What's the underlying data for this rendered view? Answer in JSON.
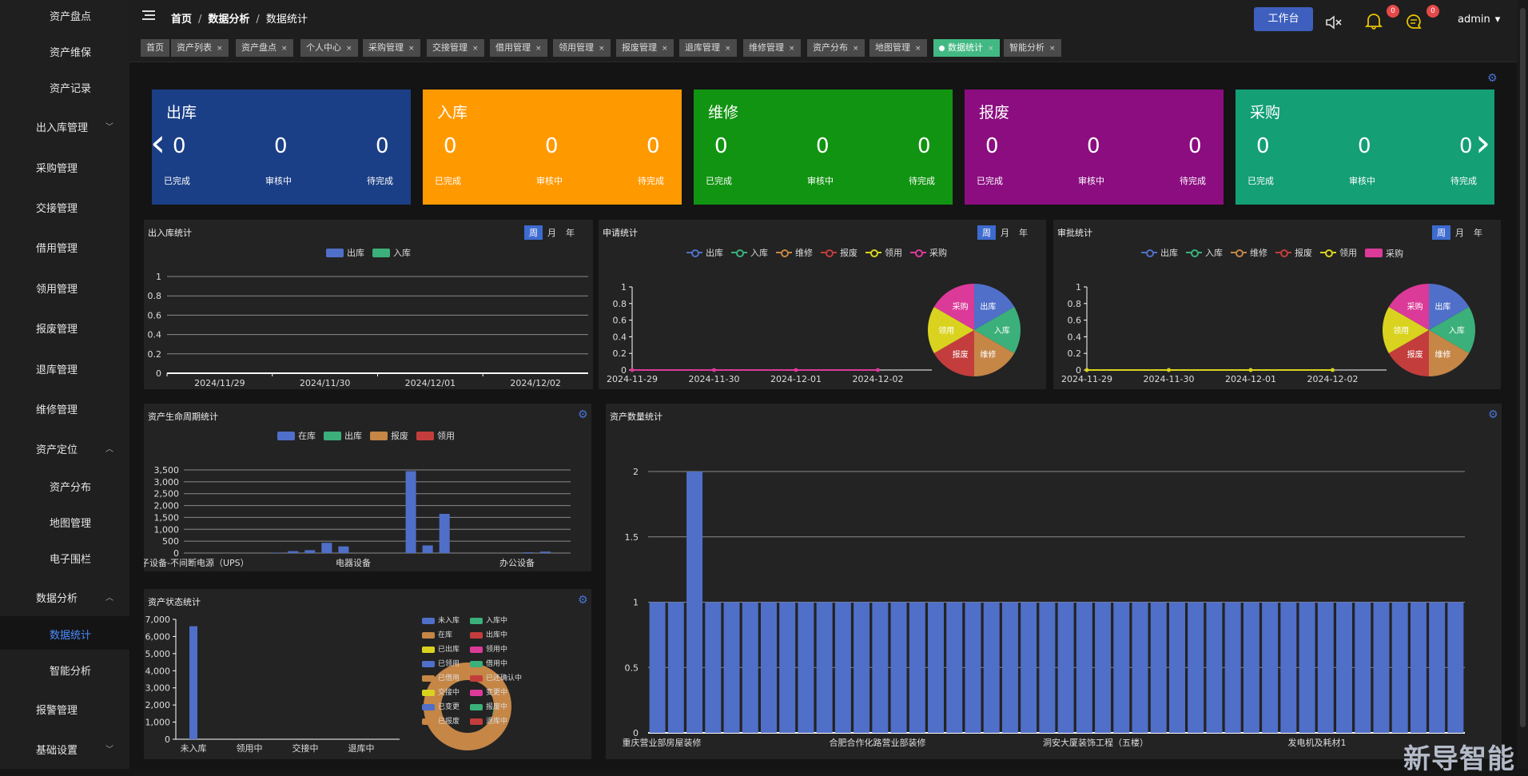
{
  "sidebar": {
    "items": [
      {
        "label": "资产盘点",
        "indent": true
      },
      {
        "label": "资产维保",
        "indent": true
      },
      {
        "label": "资产记录",
        "indent": true
      },
      {
        "label": "出入库管理",
        "indent": false,
        "arrow": "down"
      },
      {
        "label": "采购管理",
        "indent": false
      },
      {
        "label": "交接管理",
        "indent": false
      },
      {
        "label": "借用管理",
        "indent": false
      },
      {
        "label": "领用管理",
        "indent": false
      },
      {
        "label": "报废管理",
        "indent": false
      },
      {
        "label": "退库管理",
        "indent": false
      },
      {
        "label": "维修管理",
        "indent": false
      },
      {
        "label": "资产定位",
        "indent": false,
        "arrow": "up"
      },
      {
        "label": "资产分布",
        "indent": true
      },
      {
        "label": "地图管理",
        "indent": true
      },
      {
        "label": "电子围栏",
        "indent": true
      },
      {
        "label": "数据分析",
        "indent": false,
        "arrow": "up"
      },
      {
        "label": "数据统计",
        "indent": true,
        "active": true
      },
      {
        "label": "智能分析",
        "indent": true
      },
      {
        "label": "报警管理",
        "indent": false
      },
      {
        "label": "基础设置",
        "indent": false,
        "arrow": "down"
      }
    ]
  },
  "header": {
    "menu_icon": "hamburger-icon",
    "breadcrumb": [
      "首页",
      "数据分析",
      "数据统计"
    ],
    "sep": "/",
    "workbench": "工作台",
    "mute_icon": "speaker-mute-icon",
    "bell_icon": "bell-icon",
    "bell_badge": "0",
    "chat_icon": "chat-icon",
    "chat_badge": "0",
    "user": "admin",
    "caret": "▾"
  },
  "tags": [
    {
      "label": "首页",
      "closable": false
    },
    {
      "label": "资产列表",
      "closable": true
    },
    {
      "label": "资产盘点",
      "closable": true
    },
    {
      "label": "个人中心",
      "closable": true
    },
    {
      "label": "采购管理",
      "closable": true
    },
    {
      "label": "交接管理",
      "closable": true
    },
    {
      "label": "借用管理",
      "closable": true
    },
    {
      "label": "领用管理",
      "closable": true
    },
    {
      "label": "报废管理",
      "closable": true
    },
    {
      "label": "退库管理",
      "closable": true
    },
    {
      "label": "维修管理",
      "closable": true
    },
    {
      "label": "资产分布",
      "closable": true
    },
    {
      "label": "地图管理",
      "closable": true
    },
    {
      "label": "数据统计",
      "closable": true,
      "active": true
    },
    {
      "label": "智能分析",
      "closable": true
    }
  ],
  "colors": {
    "blue": "#4f6fc8",
    "green": "#3bb07a",
    "orange": "#c58646",
    "red": "#c43d3d",
    "yellow": "#d9d31f",
    "pink": "#db3a99",
    "cardBlue": "#1b3f86",
    "cardOrange": "#ff9900",
    "cardGreen": "#119411",
    "cardPurple": "#8b0d80",
    "cardTeal": "#149f75"
  },
  "cards": [
    {
      "title": "出库",
      "color": "#1b3f86",
      "values": [
        "0",
        "0",
        "0"
      ],
      "labels": [
        "已完成",
        "审核中",
        "待完成"
      ]
    },
    {
      "title": "入库",
      "color": "#ff9900",
      "values": [
        "0",
        "0",
        "0"
      ],
      "labels": [
        "已完成",
        "审核中",
        "待完成"
      ]
    },
    {
      "title": "维修",
      "color": "#119411",
      "values": [
        "0",
        "0",
        "0"
      ],
      "labels": [
        "已完成",
        "审核中",
        "待完成"
      ]
    },
    {
      "title": "报废",
      "color": "#8b0d80",
      "values": [
        "0",
        "0",
        "0"
      ],
      "labels": [
        "已完成",
        "审核中",
        "待完成"
      ]
    },
    {
      "title": "采购",
      "color": "#149f75",
      "values": [
        "0",
        "0",
        "0"
      ],
      "labels": [
        "已完成",
        "审核中",
        "待完成"
      ]
    }
  ],
  "carousel": {
    "prev": "‹",
    "next": "›"
  },
  "period_buttons": [
    "周",
    "月",
    "年"
  ],
  "gear_icon": "gear-icon",
  "chart_data": [
    {
      "id": "inout",
      "type": "bar",
      "title": "出入库统计",
      "categories": [
        "2024/11/29",
        "2024/11/30",
        "2024/12/01",
        "2024/12/02"
      ],
      "series": [
        {
          "name": "出库",
          "values": [
            0,
            0,
            0,
            0
          ]
        },
        {
          "name": "入库",
          "values": [
            0,
            0,
            0,
            0
          ]
        }
      ],
      "ylim": [
        0,
        1
      ],
      "yticks": [
        "0",
        "0.2",
        "0.4",
        "0.6",
        "0.8",
        "1"
      ],
      "grid": true,
      "legend": "top-center"
    },
    {
      "id": "apply",
      "type": "line",
      "title": "申请统计",
      "categories": [
        "2024-11-29",
        "2024-11-30",
        "2024-12-01",
        "2024-12-02"
      ],
      "series": [
        {
          "name": "出库",
          "values": [
            0,
            0,
            0,
            0
          ]
        },
        {
          "name": "入库",
          "values": [
            0,
            0,
            0,
            0
          ]
        },
        {
          "name": "维修",
          "values": [
            0,
            0,
            0,
            0
          ]
        },
        {
          "name": "报废",
          "values": [
            0,
            0,
            0,
            0
          ]
        },
        {
          "name": "领用",
          "values": [
            0,
            0,
            0,
            0
          ]
        },
        {
          "name": "采购",
          "values": [
            0,
            0,
            0,
            0
          ]
        }
      ],
      "ylim": [
        0,
        1
      ],
      "yticks": [
        "0",
        "0.2",
        "0.4",
        "0.6",
        "0.8",
        "1"
      ],
      "pie": {
        "type": "pie",
        "slices": [
          "出库",
          "入库",
          "维修",
          "报废",
          "领用",
          "采购"
        ],
        "values": [
          1,
          1,
          1,
          1,
          1,
          1
        ]
      },
      "legend": "top-center"
    },
    {
      "id": "approve",
      "type": "line",
      "title": "审批统计",
      "categories": [
        "2024-11-29",
        "2024-11-30",
        "2024-12-01",
        "2024-12-02"
      ],
      "series": [
        {
          "name": "出库",
          "values": [
            0,
            0,
            0,
            0
          ]
        },
        {
          "name": "入库",
          "values": [
            0,
            0,
            0,
            0
          ]
        },
        {
          "name": "维修",
          "values": [
            0,
            0,
            0,
            0
          ]
        },
        {
          "name": "报废",
          "values": [
            0,
            0,
            0,
            0
          ]
        },
        {
          "name": "领用",
          "values": [
            0,
            0,
            0,
            0
          ]
        },
        {
          "name": "采购",
          "values": [
            0,
            0,
            0,
            0
          ]
        }
      ],
      "ylim": [
        0,
        1
      ],
      "yticks": [
        "0",
        "0.2",
        "0.4",
        "0.6",
        "0.8",
        "1"
      ],
      "pie": {
        "type": "pie",
        "slices": [
          "出库",
          "入库",
          "维修",
          "报废",
          "领用",
          "采购"
        ],
        "values": [
          1,
          1,
          1,
          1,
          1,
          1
        ]
      },
      "legend": "top-center"
    },
    {
      "id": "lifecycle",
      "type": "bar",
      "title": "资产生命周期统计",
      "series": [
        {
          "name": "在库"
        },
        {
          "name": "出库"
        },
        {
          "name": "报废"
        },
        {
          "name": "领用"
        }
      ],
      "xlabels": [
        "子设备-不间断电源（UPS）",
        "电器设备",
        "办公设备"
      ],
      "values": [
        0,
        0,
        0,
        0,
        0,
        20,
        80,
        120,
        430,
        280,
        0,
        0,
        0,
        3450,
        320,
        1650,
        0,
        0,
        0,
        0,
        30,
        60,
        0
      ],
      "ylim": [
        0,
        3500
      ],
      "yticks": [
        "0",
        "500",
        "1,000",
        "1,500",
        "2,000",
        "2,500",
        "3,000",
        "3,500"
      ],
      "legend": "top-center"
    },
    {
      "id": "status",
      "type": "bar",
      "title": "资产状态统计",
      "categories": [
        "未入库",
        "领用中",
        "交接中",
        "退库中"
      ],
      "values": [
        6600,
        0,
        0,
        0
      ],
      "ylim": [
        0,
        7000
      ],
      "yticks": [
        "0",
        "1,000",
        "2,000",
        "3,000",
        "4,000",
        "5,000",
        "6,000",
        "7,000"
      ],
      "legend_items": [
        {
          "name": "未入库",
          "color": "#4f6fc8"
        },
        {
          "name": "入库中",
          "color": "#3bb07a"
        },
        {
          "name": "在库",
          "color": "#c58646"
        },
        {
          "name": "出库中",
          "color": "#c43d3d"
        },
        {
          "name": "已出库",
          "color": "#d9d31f"
        },
        {
          "name": "领用中",
          "color": "#db3a99"
        },
        {
          "name": "已领用",
          "color": "#4f6fc8"
        },
        {
          "name": "借用中",
          "color": "#3bb07a"
        },
        {
          "name": "已借用",
          "color": "#c58646"
        },
        {
          "name": "已还确认中",
          "color": "#c43d3d"
        },
        {
          "name": "交接中",
          "color": "#d9d31f"
        },
        {
          "name": "变更中",
          "color": "#db3a99"
        },
        {
          "name": "已变更",
          "color": "#4f6fc8"
        },
        {
          "name": "报废中",
          "color": "#3bb07a"
        },
        {
          "name": "已报废",
          "color": "#c58646"
        },
        {
          "name": "退库中",
          "color": "#c43d3d"
        }
      ],
      "pie": {
        "type": "pie",
        "note": "donut dominated by 在库"
      }
    },
    {
      "id": "quantity",
      "type": "bar",
      "title": "资产数量统计",
      "xlabels": [
        "重庆营业部房屋装修",
        "合肥合作化路营业部装修",
        "洞安大厦装饰工程（五楼）",
        "发电机及耗材1"
      ],
      "values": [
        1,
        1,
        2,
        1,
        1,
        1,
        1,
        1,
        1,
        1,
        1,
        1,
        1,
        1,
        1,
        1,
        1,
        1,
        1,
        1,
        1,
        1,
        1,
        1,
        1,
        1,
        1,
        1,
        1,
        1,
        1,
        1,
        1,
        1,
        1,
        1,
        1,
        1,
        1,
        1,
        1,
        1,
        1,
        1
      ],
      "ylim": [
        0,
        2
      ],
      "yticks": [
        "0",
        "0.5",
        "1",
        "1.5",
        "2"
      ],
      "grid": true
    }
  ],
  "watermark": "新导智能"
}
